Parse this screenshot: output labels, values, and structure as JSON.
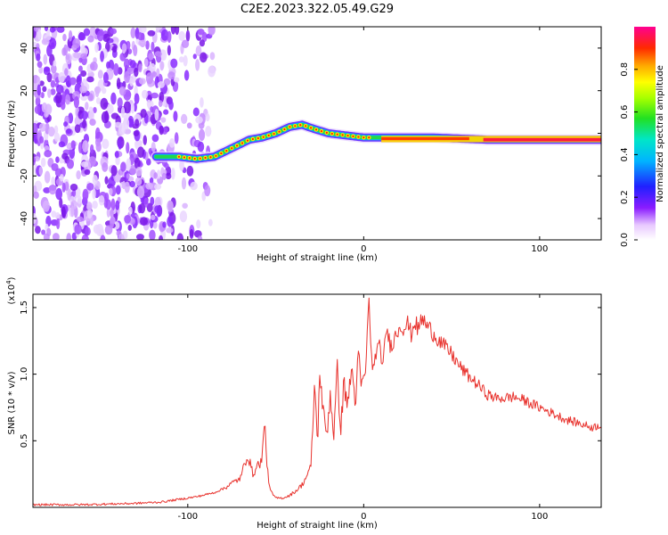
{
  "figure_title": "C2E2.2023.322.05.49.G29",
  "chart_data": [
    {
      "type": "heatmap",
      "name": "spectrogram",
      "xlabel": "Height of straight line (km)",
      "ylabel": "Frequency (Hz)",
      "xlim": [
        -188,
        135
      ],
      "ylim": [
        -50,
        50
      ],
      "xticks": [
        -100,
        0,
        100
      ],
      "yticks": [
        -40,
        -20,
        0,
        20,
        40
      ],
      "xtick_labels": [
        "-100",
        "0",
        "100"
      ],
      "ytick_labels": [
        "-40",
        "-20",
        "0",
        "20",
        "40"
      ],
      "colorbar": {
        "label": "Normalized spectral amplitude",
        "range": [
          0,
          1
        ],
        "ticks": [
          "0.0",
          "0.2",
          "0.4",
          "0.6",
          "0.8"
        ],
        "tick_values": [
          0.0,
          0.2,
          0.4,
          0.6,
          0.8
        ],
        "colormap": "rainbow-on-white"
      },
      "noise_region": {
        "x_from": -188,
        "x_to": -100,
        "freq_range": [
          -50,
          50
        ]
      },
      "signal_track": [
        {
          "x": -118,
          "f": -11
        },
        {
          "x": -105,
          "f": -11
        },
        {
          "x": -95,
          "f": -12
        },
        {
          "x": -85,
          "f": -11
        },
        {
          "x": -75,
          "f": -7
        },
        {
          "x": -65,
          "f": -3
        },
        {
          "x": -58,
          "f": -2
        },
        {
          "x": -50,
          "f": 0
        },
        {
          "x": -42,
          "f": 3
        },
        {
          "x": -35,
          "f": 4
        },
        {
          "x": -28,
          "f": 2
        },
        {
          "x": -20,
          "f": 0
        },
        {
          "x": -10,
          "f": -1
        },
        {
          "x": 0,
          "f": -2
        },
        {
          "x": 10,
          "f": -2
        },
        {
          "x": 40,
          "f": -2
        },
        {
          "x": 70,
          "f": -3
        },
        {
          "x": 100,
          "f": -3
        },
        {
          "x": 135,
          "f": -3
        }
      ]
    },
    {
      "type": "line",
      "name": "snr",
      "xlabel": "Height of straight line (km)",
      "ylabel": "SNR (10 * v/v)",
      "y_multiplier": "(x10^4)",
      "xlim": [
        -188,
        135
      ],
      "ylim": [
        0,
        1.6
      ],
      "xticks": [
        -100,
        0,
        100
      ],
      "yticks": [
        0.5,
        1.0,
        1.5
      ],
      "xtick_labels": [
        "-100",
        "0",
        "100"
      ],
      "ytick_labels": [
        "0.5",
        "1.0",
        "1.5"
      ],
      "color": "#e8322d",
      "series": [
        {
          "x": [
            -188,
            -160,
            -130,
            -115,
            -105,
            -95,
            -85,
            -80,
            -75,
            -70,
            -66,
            -63,
            -60,
            -58,
            -56,
            -55,
            -53,
            -50,
            -46,
            -42,
            -38,
            -35,
            -33,
            -30,
            -28,
            -26,
            -25,
            -23,
            -21,
            -19,
            -17,
            -15,
            -13,
            -11,
            -9,
            -7,
            -5,
            -3,
            -1,
            1,
            3,
            5,
            7,
            9,
            11,
            13,
            15,
            17,
            19,
            21,
            23,
            25,
            27,
            29,
            31,
            33,
            35,
            40,
            45,
            50,
            55,
            60,
            65,
            70,
            75,
            80,
            85,
            90,
            95,
            100,
            105,
            110,
            115,
            120,
            125,
            130,
            135
          ],
          "y": [
            0.02,
            0.02,
            0.03,
            0.04,
            0.06,
            0.08,
            0.11,
            0.14,
            0.18,
            0.22,
            0.4,
            0.25,
            0.32,
            0.35,
            0.66,
            0.3,
            0.12,
            0.07,
            0.07,
            0.09,
            0.13,
            0.17,
            0.22,
            0.3,
            0.9,
            0.5,
            1.07,
            0.7,
            0.55,
            0.85,
            0.55,
            1.0,
            0.6,
            0.95,
            0.75,
            1.06,
            0.8,
            1.08,
            0.9,
            1.02,
            1.55,
            1.0,
            1.17,
            1.2,
            1.07,
            1.35,
            1.22,
            1.25,
            1.32,
            1.37,
            1.35,
            1.38,
            1.3,
            1.4,
            1.33,
            1.42,
            1.38,
            1.3,
            1.22,
            1.15,
            1.05,
            0.98,
            0.92,
            0.85,
            0.82,
            0.82,
            0.83,
            0.81,
            0.78,
            0.75,
            0.72,
            0.69,
            0.66,
            0.64,
            0.62,
            0.6,
            0.62
          ]
        }
      ]
    }
  ]
}
